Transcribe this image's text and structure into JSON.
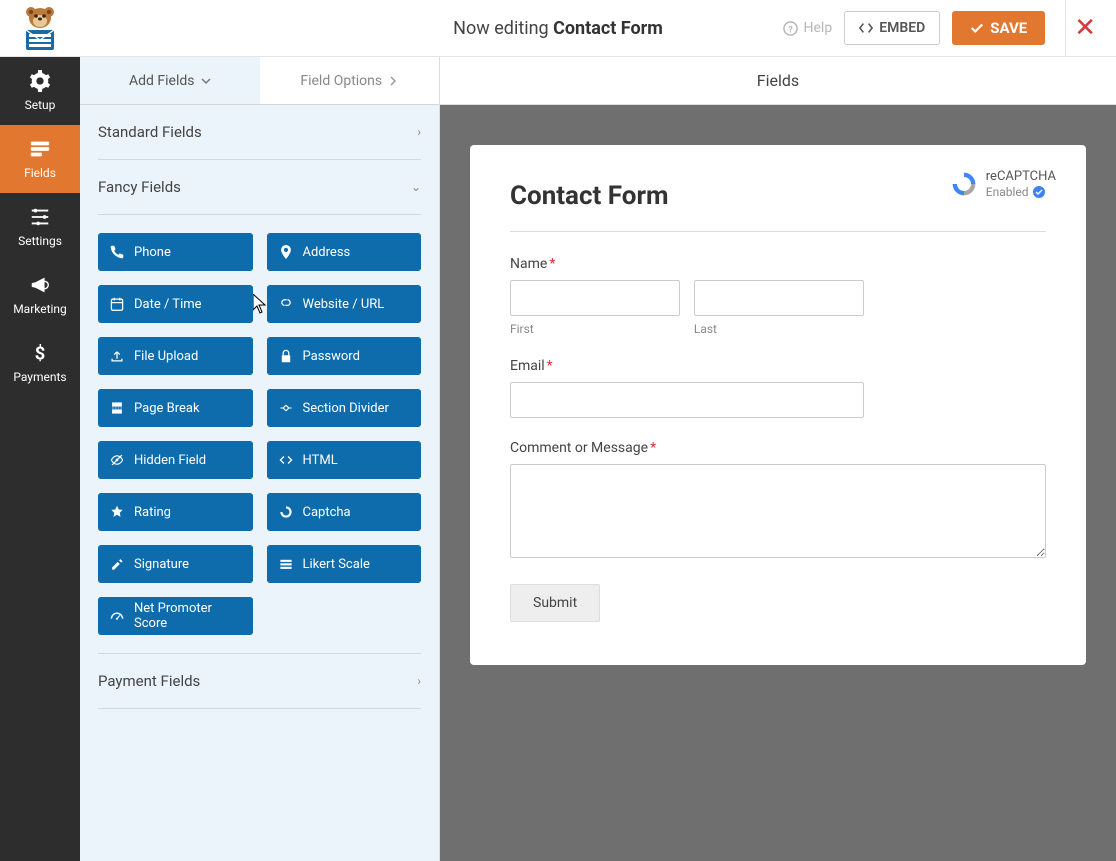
{
  "colors": {
    "accent": "#e27730",
    "nav_bg": "#2d2d2d",
    "panel_bg": "#ebf3fb",
    "field_btn": "#0e6cad",
    "canvas_bg": "#6f6f6f",
    "required": "#d63638"
  },
  "topbar": {
    "editing_prefix": "Now editing ",
    "form_name": "Contact Form",
    "help": "Help",
    "embed": "EMBED",
    "save": "SAVE"
  },
  "nav": {
    "setup": "Setup",
    "fields": "Fields",
    "settings": "Settings",
    "marketing": "Marketing",
    "payments": "Payments"
  },
  "panel": {
    "tab_add": "Add Fields",
    "tab_options": "Field Options",
    "section_standard": "Standard Fields",
    "section_fancy": "Fancy Fields",
    "section_payment": "Payment Fields",
    "fancy_fields": [
      {
        "icon": "phone",
        "label": "Phone"
      },
      {
        "icon": "address",
        "label": "Address"
      },
      {
        "icon": "date",
        "label": "Date / Time"
      },
      {
        "icon": "url",
        "label": "Website / URL"
      },
      {
        "icon": "upload",
        "label": "File Upload"
      },
      {
        "icon": "lock",
        "label": "Password"
      },
      {
        "icon": "pagebreak",
        "label": "Page Break"
      },
      {
        "icon": "divider",
        "label": "Section Divider"
      },
      {
        "icon": "hidden",
        "label": "Hidden Field"
      },
      {
        "icon": "html",
        "label": "HTML"
      },
      {
        "icon": "star",
        "label": "Rating"
      },
      {
        "icon": "captcha",
        "label": "Captcha"
      },
      {
        "icon": "signature",
        "label": "Signature"
      },
      {
        "icon": "likert",
        "label": "Likert Scale"
      },
      {
        "icon": "nps",
        "label": "Net Promoter Score"
      }
    ]
  },
  "preview": {
    "header": "Fields",
    "form_title": "Contact Form",
    "recaptcha_title": "reCAPTCHA",
    "recaptcha_status": "Enabled",
    "name_label": "Name",
    "first_sub": "First",
    "last_sub": "Last",
    "email_label": "Email",
    "comment_label": "Comment or Message",
    "submit": "Submit"
  }
}
